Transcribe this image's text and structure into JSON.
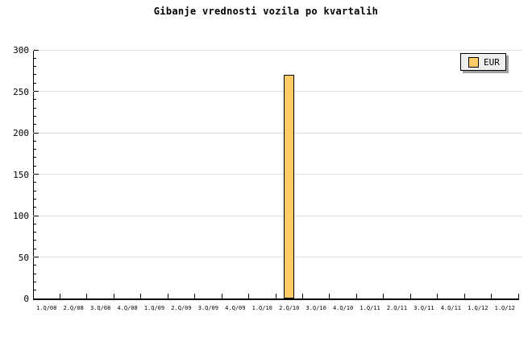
{
  "window": {
    "background": "#FFFFFF"
  },
  "chart_data": {
    "type": "bar",
    "title": "Gibanje vrednosti vozila po kvartalih",
    "xlabel": "",
    "ylabel": "",
    "categories": [
      "1.Q/08",
      "2.Q/08",
      "3.Q/08",
      "4.Q/08",
      "1.Q/09",
      "2.Q/09",
      "3.Q/09",
      "4.Q/09",
      "1.Q/10",
      "2.Q/10",
      "3.Q/10",
      "4.Q/10",
      "1.Q/11",
      "2.Q/11",
      "3.Q/11",
      "4.Q/11",
      "1.Q/12",
      "1.Q/12"
    ],
    "series": [
      {
        "name": "EUR",
        "values": [
          null,
          null,
          null,
          null,
          null,
          null,
          null,
          null,
          null,
          270,
          null,
          null,
          null,
          null,
          null,
          null,
          null,
          null
        ]
      }
    ],
    "ylim": [
      0,
      300
    ],
    "ytick_major": 50,
    "ytick_minor": 10,
    "ytick_labels": [
      "0",
      "50",
      "100",
      "150",
      "200",
      "250",
      "300"
    ],
    "grid": "horizontal-major",
    "legend": {
      "position": "top-right",
      "entries": [
        "EUR"
      ]
    },
    "colors": {
      "bar_fill": "#FFCC66",
      "bar_border": "#000000",
      "gridline": "#DEDEDE",
      "axis": "#000000",
      "text": "#000000",
      "legend_bg": "#EFEFEF",
      "legend_border": "#000000",
      "legend_shadow": "#A0A0A0"
    }
  }
}
